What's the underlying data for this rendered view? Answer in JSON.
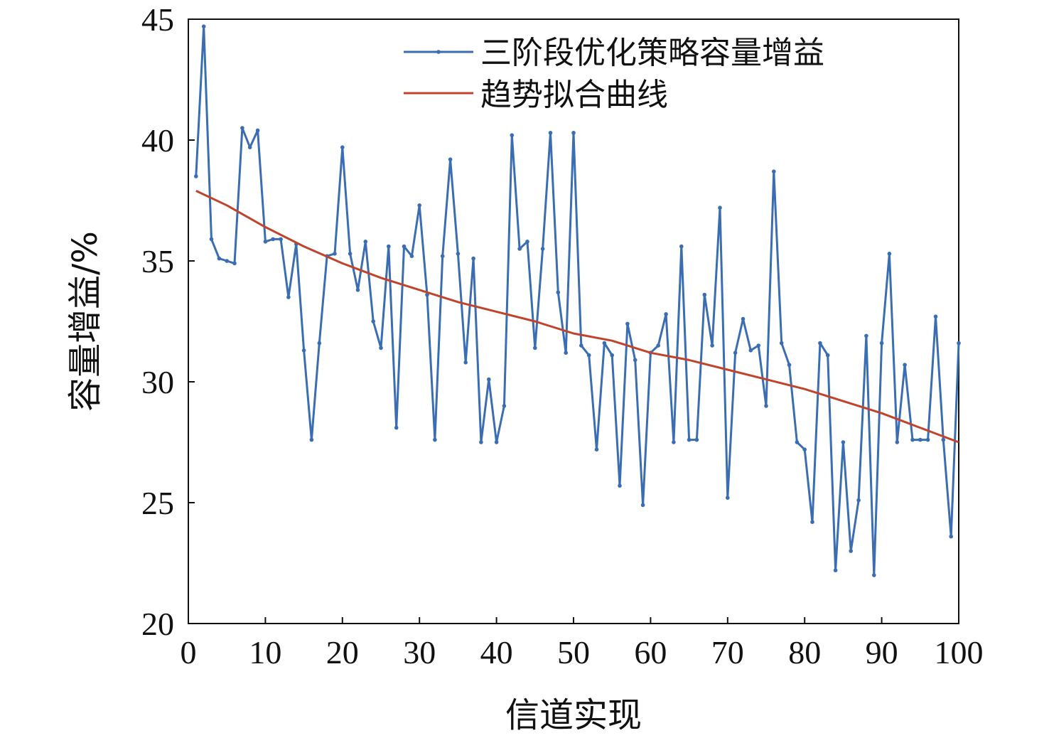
{
  "chart_data": {
    "type": "line",
    "title": "",
    "xlabel": "信道实现",
    "ylabel": "容量增益/%",
    "xlim": [
      0,
      100
    ],
    "ylim": [
      20,
      45
    ],
    "xticks": [
      0,
      10,
      20,
      30,
      40,
      50,
      60,
      70,
      80,
      90,
      100
    ],
    "yticks": [
      20,
      25,
      30,
      35,
      40,
      45
    ],
    "grid": false,
    "legend_position": "top-right",
    "series": [
      {
        "name": "三阶段优化策略容量增益",
        "color": "#3a6db1",
        "marker": "dot",
        "x": [
          1,
          2,
          3,
          4,
          5,
          6,
          7,
          8,
          9,
          10,
          11,
          12,
          13,
          14,
          15,
          16,
          17,
          18,
          19,
          20,
          21,
          22,
          23,
          24,
          25,
          26,
          27,
          28,
          29,
          30,
          31,
          32,
          33,
          34,
          35,
          36,
          37,
          38,
          39,
          40,
          41,
          42,
          43,
          44,
          45,
          46,
          47,
          48,
          49,
          50,
          51,
          52,
          53,
          54,
          55,
          56,
          57,
          58,
          59,
          60,
          61,
          62,
          63,
          64,
          65,
          66,
          67,
          68,
          69,
          70,
          71,
          72,
          73,
          74,
          75,
          76,
          77,
          78,
          79,
          80,
          81,
          82,
          83,
          84,
          85,
          86,
          87,
          88,
          89,
          90,
          91,
          92,
          93,
          94,
          95,
          96,
          97,
          98,
          99,
          100
        ],
        "values": [
          38.5,
          44.7,
          35.9,
          35.1,
          35.0,
          34.9,
          40.5,
          39.7,
          40.4,
          35.8,
          35.9,
          35.9,
          33.5,
          35.7,
          31.3,
          27.6,
          31.6,
          35.2,
          35.3,
          39.7,
          35.3,
          33.8,
          35.8,
          32.5,
          31.4,
          35.6,
          28.1,
          35.6,
          35.2,
          37.3,
          33.6,
          27.6,
          35.2,
          39.2,
          35.3,
          30.8,
          35.1,
          27.5,
          30.1,
          27.5,
          29.0,
          40.2,
          35.5,
          35.8,
          31.4,
          35.5,
          40.3,
          33.7,
          31.2,
          40.3,
          31.5,
          31.1,
          27.2,
          31.6,
          31.1,
          25.7,
          32.4,
          30.9,
          24.9,
          31.2,
          31.5,
          32.8,
          27.5,
          35.6,
          27.6,
          27.6,
          33.6,
          31.5,
          37.2,
          25.2,
          31.2,
          32.6,
          31.3,
          31.5,
          29.0,
          38.7,
          31.6,
          30.7,
          27.5,
          27.2,
          24.2,
          31.6,
          31.1,
          22.2,
          27.5,
          23.0,
          25.1,
          31.9,
          22.0,
          31.6,
          35.3,
          27.5,
          30.7,
          27.6,
          27.6,
          27.6,
          32.7,
          27.6,
          23.6,
          31.6
        ]
      },
      {
        "name": "趋势拟合曲线",
        "color": "#c0442b",
        "marker": "none",
        "x": [
          1,
          5,
          10,
          15,
          20,
          25,
          30,
          35,
          40,
          45,
          50,
          55,
          60,
          65,
          70,
          75,
          80,
          85,
          90,
          95,
          100
        ],
        "values": [
          37.9,
          37.3,
          36.4,
          35.6,
          34.9,
          34.3,
          33.8,
          33.3,
          32.9,
          32.5,
          32.0,
          31.7,
          31.2,
          30.9,
          30.5,
          30.1,
          29.7,
          29.2,
          28.7,
          28.1,
          27.5
        ]
      }
    ]
  }
}
